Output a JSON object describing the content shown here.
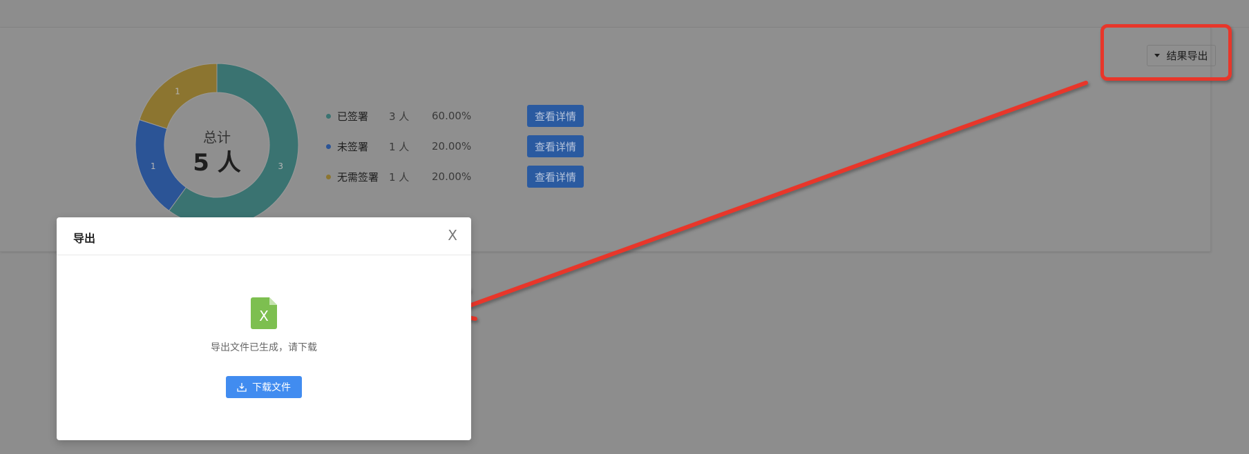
{
  "chart_data": {
    "type": "pie",
    "variant": "donut",
    "categories": [
      "已签署",
      "未签署",
      "无需签署"
    ],
    "values": [
      3,
      1,
      1
    ],
    "colors": [
      "#3a7371",
      "#2b5496",
      "#8c7530"
    ],
    "center_title": "总计",
    "center_value": "5 人"
  },
  "legend": [
    {
      "label": "已签署",
      "count": "3 人",
      "percent": "60.00%",
      "button": "查看详情"
    },
    {
      "label": "未签署",
      "count": "1 人",
      "percent": "20.00%",
      "button": "查看详情"
    },
    {
      "label": "无需签署",
      "count": "1 人",
      "percent": "20.00%",
      "button": "查看详情"
    }
  ],
  "toolbar": {
    "export_label": "结果导出"
  },
  "annotation": {
    "color": "#e8362a"
  },
  "modal": {
    "title": "导出",
    "close": "X",
    "file_icon_letter": "X",
    "message": "导出文件已生成，请下载",
    "download_label": "下载文件"
  }
}
